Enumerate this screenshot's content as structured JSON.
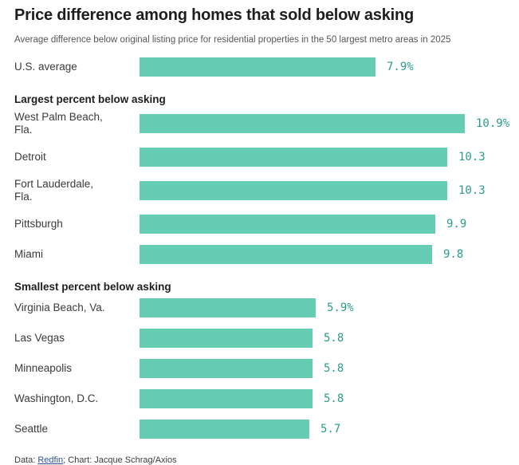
{
  "title": "Price difference among homes that sold below asking",
  "subtitle": "Average difference below original listing price for residential properties in the 50 largest metro areas in 2025",
  "footer": {
    "prefix": "Data: ",
    "link_label": "Redfin",
    "suffix": "; Chart: Jacque Schrag/Axios"
  },
  "colors": {
    "bar": "#66ccb3",
    "value_text": "#2a9d8a",
    "link": "#33508c"
  },
  "chart_data": {
    "type": "bar",
    "orientation": "horizontal",
    "unit": "%",
    "xlim": [
      0,
      10.9
    ],
    "grid": false,
    "legend": false,
    "groups": [
      {
        "header": "",
        "rows": [
          {
            "label": "U.S. average",
            "value": 7.9,
            "display": "7.9%"
          }
        ]
      },
      {
        "header": "Largest percent below asking",
        "rows": [
          {
            "label": "West Palm Beach, Fla.",
            "value": 10.9,
            "display": "10.9%"
          },
          {
            "label": "Detroit",
            "value": 10.3,
            "display": "10.3"
          },
          {
            "label": "Fort Lauderdale, Fla.",
            "value": 10.3,
            "display": "10.3"
          },
          {
            "label": "Pittsburgh",
            "value": 9.9,
            "display": "9.9"
          },
          {
            "label": "Miami",
            "value": 9.8,
            "display": "9.8"
          }
        ]
      },
      {
        "header": "Smallest percent below asking",
        "rows": [
          {
            "label": "Virginia Beach, Va.",
            "value": 5.9,
            "display": "5.9%"
          },
          {
            "label": "Las Vegas",
            "value": 5.8,
            "display": "5.8"
          },
          {
            "label": "Minneapolis",
            "value": 5.8,
            "display": "5.8"
          },
          {
            "label": "Washington, D.C.",
            "value": 5.8,
            "display": "5.8"
          },
          {
            "label": "Seattle",
            "value": 5.7,
            "display": "5.7"
          }
        ]
      }
    ]
  }
}
